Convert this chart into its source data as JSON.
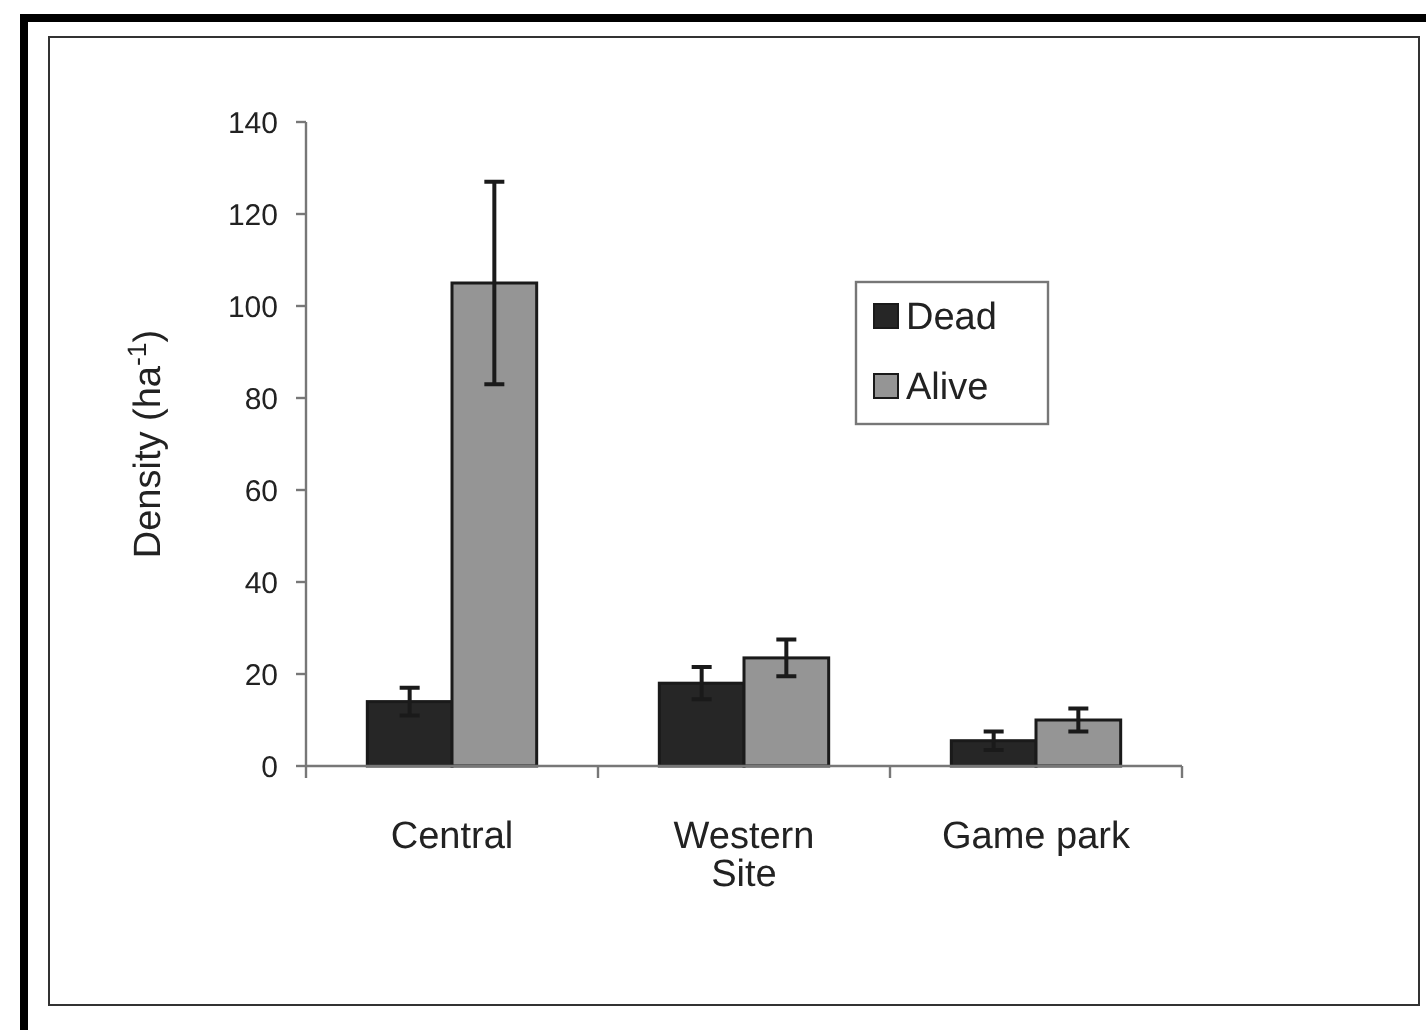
{
  "chart_data": {
    "type": "bar",
    "ylabel": "Density (ha$^{-1}$)",
    "categories": [
      "Central",
      "Western\nSite",
      "Game park"
    ],
    "series": [
      {
        "name": "Dead",
        "color": "#262626",
        "values": [
          14,
          18,
          5.5
        ],
        "errors": [
          3,
          3.5,
          2
        ]
      },
      {
        "name": "Alive",
        "color": "#959595",
        "values": [
          105,
          23.5,
          10
        ],
        "errors": [
          22,
          4,
          2.5
        ]
      }
    ],
    "ylim": [
      0,
      140
    ],
    "yticks": [
      0,
      20,
      40,
      60,
      80,
      100,
      120,
      140
    ],
    "legend": "top right"
  }
}
